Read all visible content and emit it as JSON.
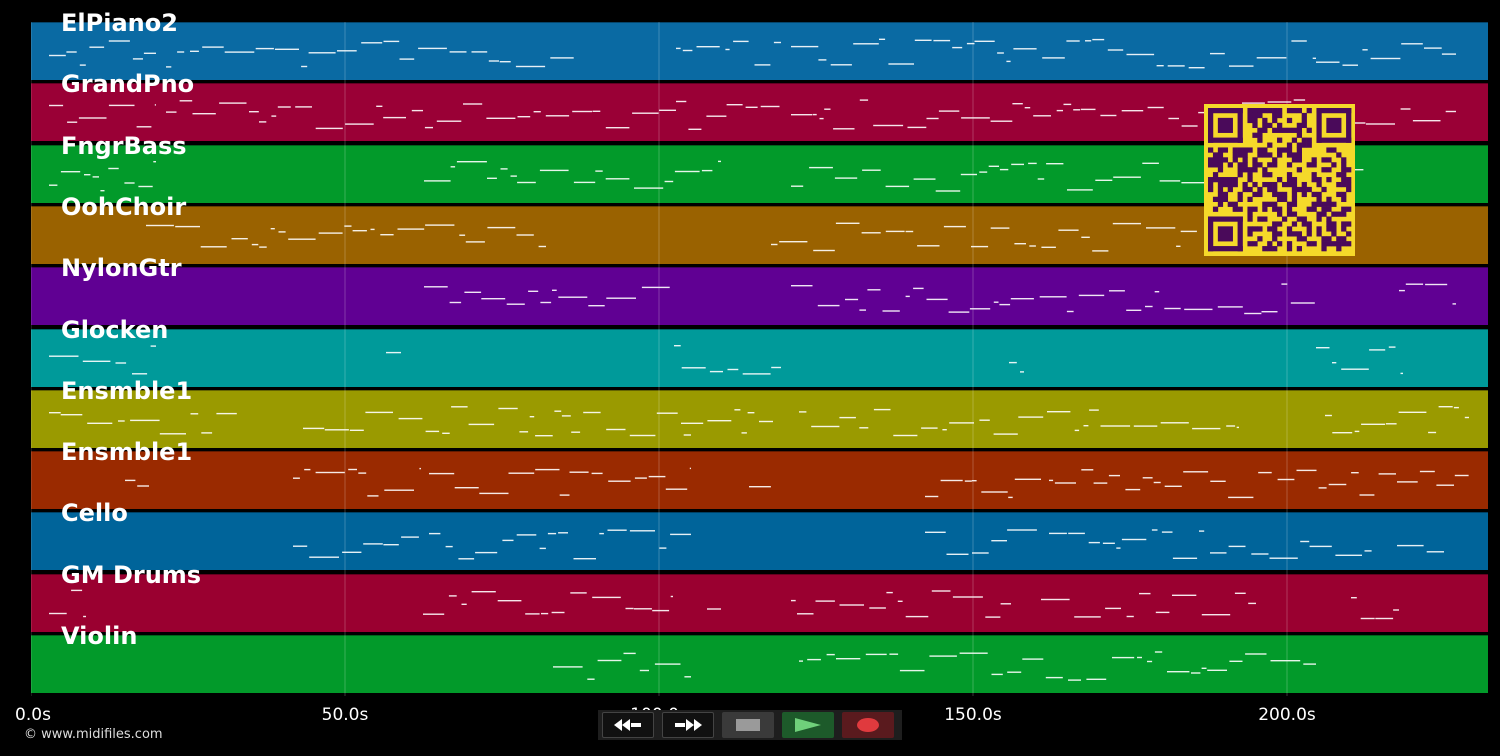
{
  "tracks": [
    {
      "name": "ElPiano2",
      "color": "#0a6aa3"
    },
    {
      "name": "GrandPno",
      "color": "#9a0036"
    },
    {
      "name": "FngrBass",
      "color": "#029a2a"
    },
    {
      "name": "OohChoir",
      "color": "#9a6200"
    },
    {
      "name": "NylonGtr",
      "color": "#600093"
    },
    {
      "name": "Glocken",
      "color": "#009a9a"
    },
    {
      "name": "Ensmble1",
      "color": "#9a9a00"
    },
    {
      "name": "Ensmble1",
      "color": "#9a2a00"
    },
    {
      "name": "Cello",
      "color": "#00649a"
    },
    {
      "name": "GM Drums",
      "color": "#9a0030"
    },
    {
      "name": "Violin",
      "color": "#029a2a"
    }
  ],
  "time_axis": {
    "ticks": [
      "0.0s",
      "50.0s",
      "100.0s",
      "150.0s",
      "200.0s"
    ],
    "tick_values": [
      0,
      50,
      100,
      150,
      200
    ],
    "max_seconds": 232
  },
  "copyright": "© www.midifiles.com",
  "controls": {
    "rewind_icon": "rewind-icon",
    "forward_icon": "fast-forward-icon",
    "stop_icon": "stop-icon",
    "play_icon": "play-icon",
    "record_icon": "record-icon"
  },
  "qr_code": {
    "color_fg": "#4a0a5a",
    "color_bg": "#f5d92a"
  }
}
